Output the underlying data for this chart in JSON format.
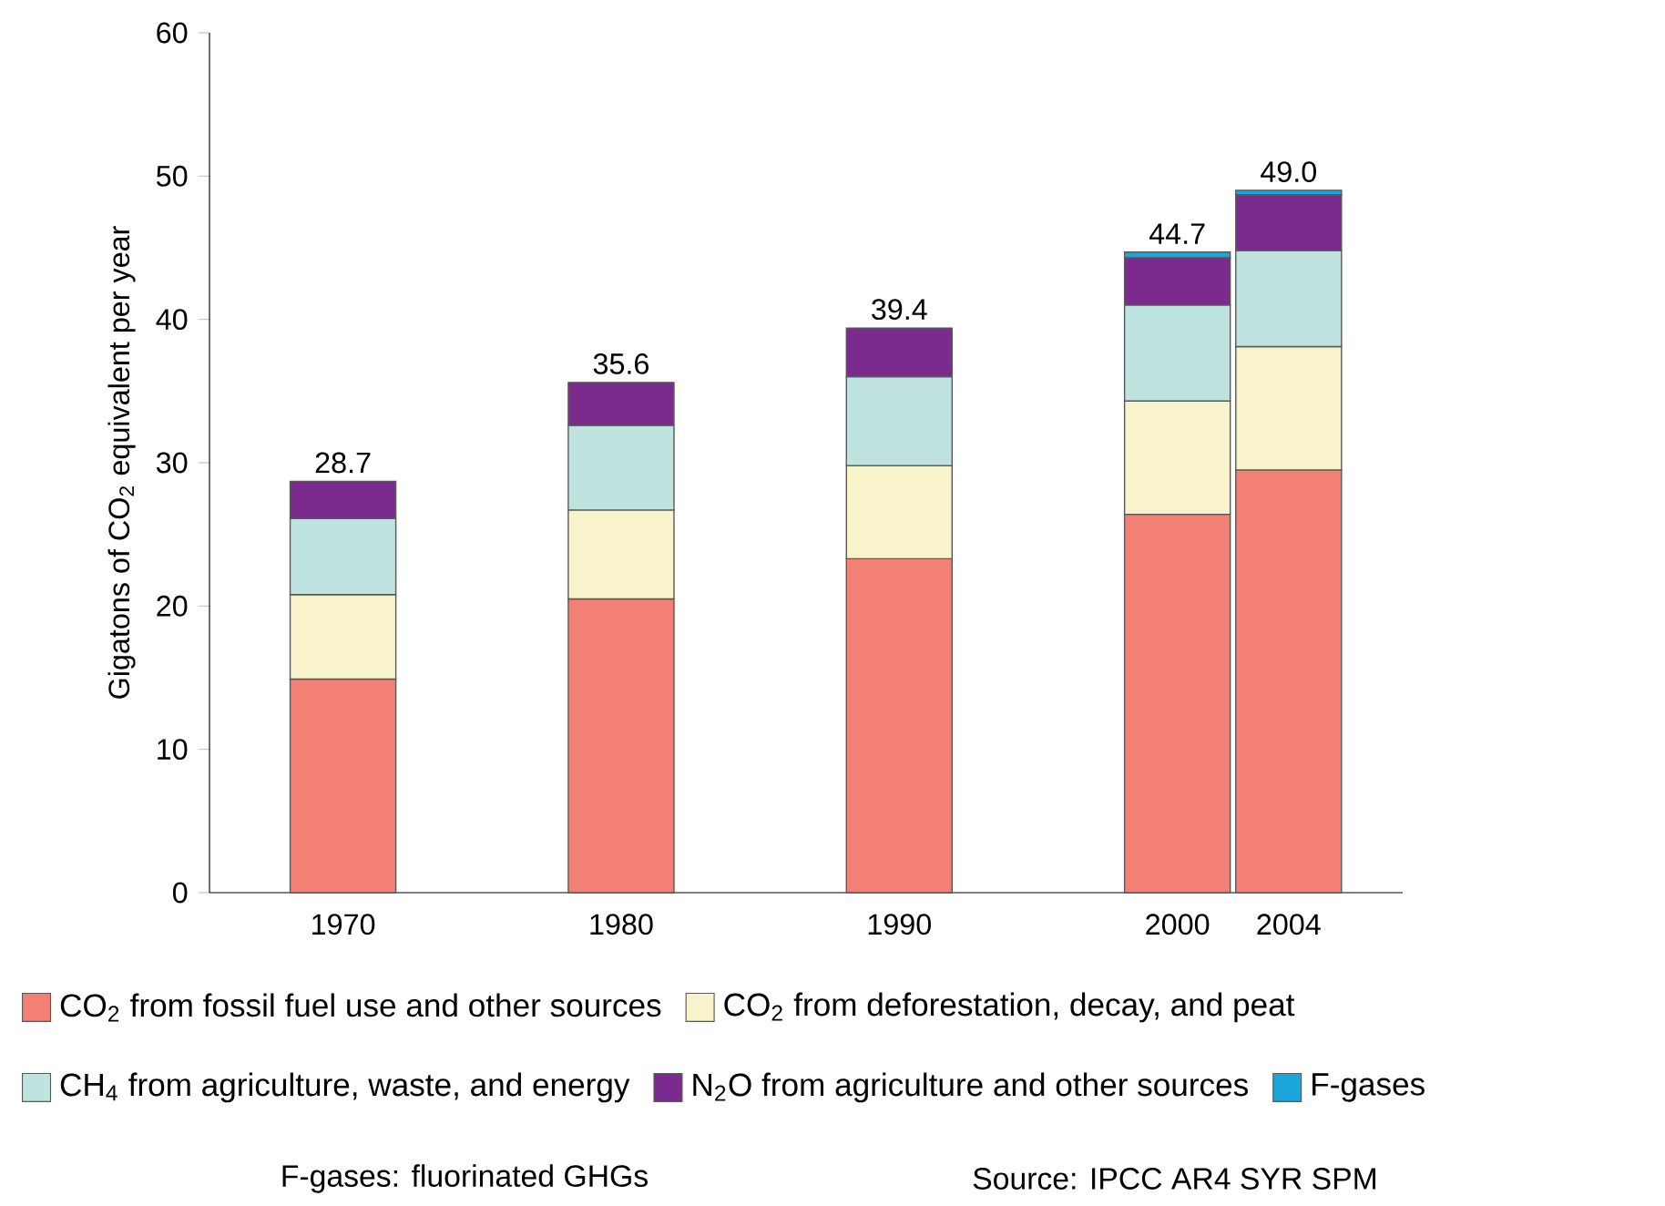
{
  "chart_data": {
    "type": "bar",
    "stacked": true,
    "x": [
      1970,
      1980,
      1990,
      2000,
      2004
    ],
    "xlim": [
      1965.2,
      2008.1
    ],
    "xticks": [
      1970,
      1980,
      1990,
      2000,
      2004
    ],
    "ylim": [
      0,
      60
    ],
    "yticks": [
      0,
      10,
      20,
      30,
      40,
      50,
      60
    ],
    "ylabel": "Gigatons of CO$_{2}$ equivalent per year",
    "series": [
      {
        "name": "CO$_{2}$ from fossil fuel use and other sources",
        "color": "#f28074",
        "values": [
          14.9,
          20.5,
          23.3,
          26.4,
          29.5
        ]
      },
      {
        "name": "CO$_{2}$ from deforestation, decay, and peat",
        "color": "#f8f3cb",
        "values": [
          5.9,
          6.2,
          6.5,
          7.9,
          8.6
        ]
      },
      {
        "name": "CH$_{4}$ from agriculture, waste, and energy",
        "color": "#bfe3de",
        "values": [
          5.3,
          5.9,
          6.2,
          6.7,
          6.7
        ]
      },
      {
        "name": "N$_{2}$O from agriculture and other sources",
        "color": "#7b2a8e",
        "values": [
          2.6,
          3.0,
          3.4,
          3.3,
          3.9
        ]
      },
      {
        "name": "F-gases",
        "color": "#1aa6d9",
        "values": [
          null,
          null,
          null,
          0.4,
          0.3
        ]
      }
    ],
    "totals": [
      "28.7",
      "35.6",
      "39.4",
      "44.7",
      "49.0"
    ],
    "legend": "bottom",
    "annotations": [
      "F-gases: fluorinated GHGs",
      "Source: IPCC AR4 SYR SPM"
    ]
  }
}
